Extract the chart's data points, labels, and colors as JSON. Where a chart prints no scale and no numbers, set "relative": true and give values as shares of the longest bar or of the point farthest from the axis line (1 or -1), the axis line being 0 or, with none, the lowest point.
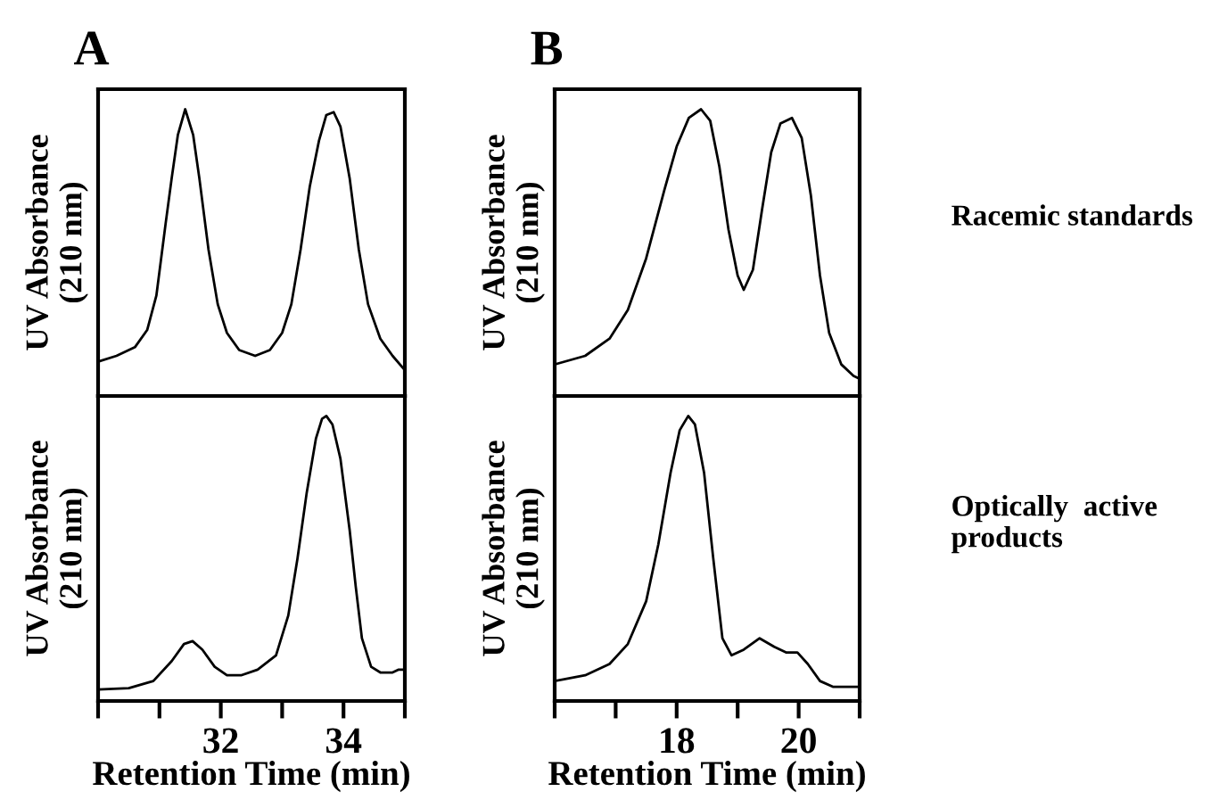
{
  "chart_data": [
    {
      "type": "line",
      "title": "A",
      "ylabel": "UV Absorbance\n(210 nm)",
      "relative": true,
      "tick_labels": false,
      "xlim": [
        30,
        35
      ],
      "x": [
        30.0,
        30.3,
        30.6,
        30.8,
        30.95,
        31.1,
        31.2,
        31.3,
        31.42,
        31.55,
        31.65,
        31.8,
        31.95,
        32.1,
        32.3,
        32.56,
        32.8,
        33.0,
        33.15,
        33.3,
        33.45,
        33.6,
        33.72,
        33.84,
        33.95,
        34.1,
        34.25,
        34.4,
        34.6,
        34.8,
        35.0
      ],
      "series": [
        {
          "color": "#000000",
          "values": [
            0.12,
            0.14,
            0.17,
            0.23,
            0.35,
            0.6,
            0.76,
            0.91,
            1.0,
            0.91,
            0.76,
            0.51,
            0.32,
            0.22,
            0.16,
            0.14,
            0.16,
            0.22,
            0.32,
            0.51,
            0.73,
            0.89,
            0.98,
            0.99,
            0.94,
            0.76,
            0.51,
            0.32,
            0.2,
            0.14,
            0.09
          ]
        }
      ]
    },
    {
      "type": "line",
      "title": "B",
      "ylabel": "UV Absorbance\n(210 nm)",
      "relative": true,
      "tick_labels": false,
      "xlim": [
        16,
        21
      ],
      "annotations": [
        "Racemic standards"
      ],
      "x": [
        16.0,
        16.5,
        16.9,
        17.2,
        17.5,
        17.8,
        18.0,
        18.2,
        18.4,
        18.55,
        18.7,
        18.85,
        19.0,
        19.1,
        19.25,
        19.4,
        19.55,
        19.7,
        19.89,
        20.05,
        20.2,
        20.35,
        20.5,
        20.7,
        20.9,
        21.0
      ],
      "series": [
        {
          "color": "#000000",
          "values": [
            0.11,
            0.14,
            0.2,
            0.3,
            0.48,
            0.72,
            0.87,
            0.97,
            1.0,
            0.96,
            0.8,
            0.58,
            0.42,
            0.37,
            0.44,
            0.65,
            0.85,
            0.95,
            0.97,
            0.9,
            0.7,
            0.42,
            0.22,
            0.11,
            0.07,
            0.06
          ]
        }
      ]
    },
    {
      "type": "line",
      "xlabel": "Retention Time (min)",
      "ylabel": "UV Absorbance\n(210 nm)",
      "relative": true,
      "tick_labels": "x",
      "xlim": [
        30,
        35
      ],
      "xticks": [
        {
          "value": 30,
          "label": null
        },
        {
          "value": 31,
          "label": null
        },
        32,
        {
          "value": 33,
          "label": null
        },
        34,
        {
          "value": 35,
          "label": null
        }
      ],
      "x": [
        30.0,
        30.5,
        30.9,
        31.2,
        31.4,
        31.54,
        31.7,
        31.9,
        32.1,
        32.33,
        32.6,
        32.9,
        33.1,
        33.25,
        33.4,
        33.55,
        33.65,
        33.72,
        33.82,
        33.95,
        34.1,
        34.2,
        34.3,
        34.45,
        34.6,
        34.8,
        34.9,
        35.0
      ],
      "series": [
        {
          "color": "#000000",
          "values": [
            0.04,
            0.045,
            0.07,
            0.14,
            0.2,
            0.21,
            0.18,
            0.12,
            0.09,
            0.09,
            0.11,
            0.16,
            0.3,
            0.5,
            0.73,
            0.92,
            0.99,
            1.0,
            0.97,
            0.85,
            0.6,
            0.4,
            0.22,
            0.12,
            0.1,
            0.1,
            0.11,
            0.11
          ]
        }
      ]
    },
    {
      "type": "line",
      "xlabel": "Retention Time (min)",
      "ylabel": "UV Absorbance\n(210 nm)",
      "relative": true,
      "tick_labels": "x",
      "xlim": [
        16,
        21
      ],
      "annotations": [
        "Optically  active\nproducts"
      ],
      "xticks": [
        {
          "value": 16,
          "label": null
        },
        {
          "value": 17,
          "label": null
        },
        18,
        {
          "value": 19,
          "label": null
        },
        20,
        {
          "value": 21,
          "label": null
        }
      ],
      "x": [
        16.0,
        16.5,
        16.9,
        17.2,
        17.5,
        17.7,
        17.9,
        18.05,
        18.19,
        18.3,
        18.45,
        18.6,
        18.75,
        18.9,
        19.1,
        19.36,
        19.6,
        19.8,
        19.98,
        20.15,
        20.35,
        20.56,
        21.0
      ],
      "series": [
        {
          "color": "#000000",
          "values": [
            0.07,
            0.09,
            0.13,
            0.2,
            0.35,
            0.55,
            0.8,
            0.95,
            1.0,
            0.97,
            0.8,
            0.5,
            0.22,
            0.16,
            0.18,
            0.22,
            0.19,
            0.17,
            0.17,
            0.13,
            0.07,
            0.05,
            0.05
          ]
        }
      ]
    }
  ]
}
